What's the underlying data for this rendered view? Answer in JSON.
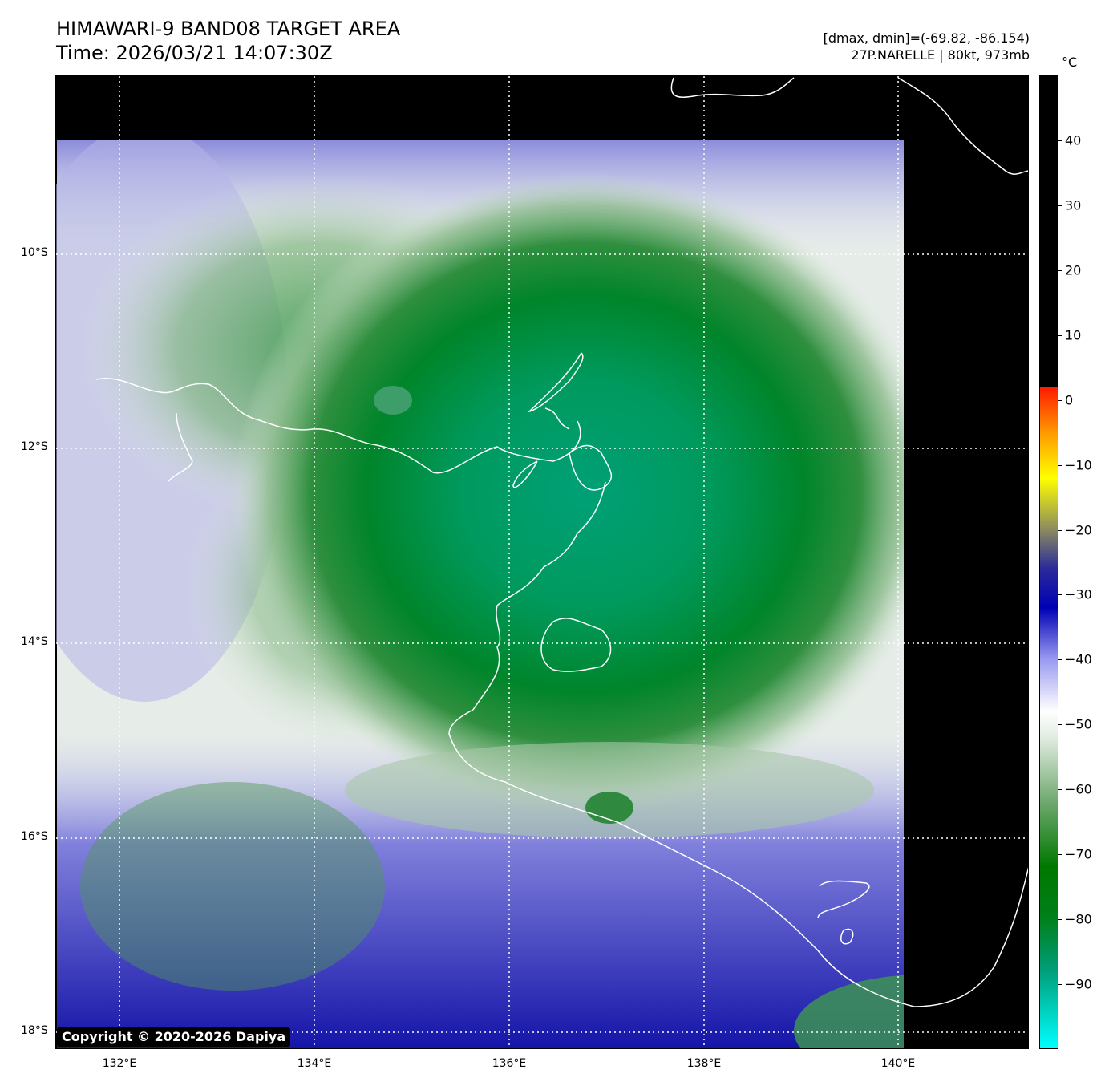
{
  "title": {
    "line1": "HIMAWARI-9 BAND08 TARGET AREA",
    "line2": "Time: 2026/03/21 14:07:30Z"
  },
  "info": {
    "range": "[dmax, dmin]=(-69.82, -86.154)",
    "storm": "27P.NARELLE | 80kt, 973mb"
  },
  "colorbar": {
    "unit": "°C",
    "vmin": -100,
    "vmax": 50,
    "ticks": [
      "40",
      "30",
      "20",
      "10",
      "0",
      "−10",
      "−20",
      "−30",
      "−40",
      "−50",
      "−60",
      "−70",
      "−80",
      "−90"
    ],
    "tick_values": [
      40,
      30,
      20,
      10,
      0,
      -10,
      -20,
      -30,
      -40,
      -50,
      -60,
      -70,
      -80,
      -90
    ],
    "color_stops": [
      {
        "t": -100,
        "c": "#00ffff"
      },
      {
        "t": -88,
        "c": "#009e7a"
      },
      {
        "t": -80,
        "c": "#00801a"
      },
      {
        "t": -72,
        "c": "#007800"
      },
      {
        "t": -62,
        "c": "#6fa86f"
      },
      {
        "t": -52,
        "c": "#e2ece2"
      },
      {
        "t": -48,
        "c": "#ffffff"
      },
      {
        "t": -40,
        "c": "#9a9af0"
      },
      {
        "t": -32,
        "c": "#0000b4"
      },
      {
        "t": -26,
        "c": "#2a2a9a"
      },
      {
        "t": -20,
        "c": "#8a8a60"
      },
      {
        "t": -12,
        "c": "#ffff00"
      },
      {
        "t": -5,
        "c": "#ff9900"
      },
      {
        "t": 2,
        "c": "#ff1a00"
      },
      {
        "t": 2.01,
        "c": "#000000"
      },
      {
        "t": 50,
        "c": "#000000"
      }
    ]
  },
  "map": {
    "lat_labels": [
      "10°S",
      "12°S",
      "14°S",
      "16°S",
      "18°S"
    ],
    "lon_labels": [
      "132°E",
      "134°E",
      "136°E",
      "138°E",
      "140°E"
    ]
  },
  "copyright": "Copyright © 2020-2026 Dapiya"
}
